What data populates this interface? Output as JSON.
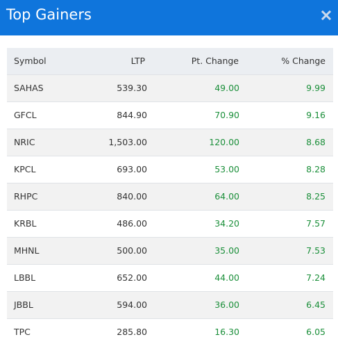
{
  "modal": {
    "title": "Top Gainers",
    "close_icon": "close-icon",
    "accent_color": "#0f75dc"
  },
  "table": {
    "columns": {
      "symbol": "Symbol",
      "ltp": "LTP",
      "pt_change": "Pt. Change",
      "pct_change": "% Change"
    },
    "rows": [
      {
        "symbol": "SAHAS",
        "ltp": "539.30",
        "pt_change": "49.00",
        "pct_change": "9.99"
      },
      {
        "symbol": "GFCL",
        "ltp": "844.90",
        "pt_change": "70.90",
        "pct_change": "9.16"
      },
      {
        "symbol": "NRIC",
        "ltp": "1,503.00",
        "pt_change": "120.00",
        "pct_change": "8.68"
      },
      {
        "symbol": "KPCL",
        "ltp": "693.00",
        "pt_change": "53.00",
        "pct_change": "8.28"
      },
      {
        "symbol": "RHPC",
        "ltp": "840.00",
        "pt_change": "64.00",
        "pct_change": "8.25"
      },
      {
        "symbol": "KRBL",
        "ltp": "486.00",
        "pt_change": "34.20",
        "pct_change": "7.57"
      },
      {
        "symbol": "MHNL",
        "ltp": "500.00",
        "pt_change": "35.00",
        "pct_change": "7.53"
      },
      {
        "symbol": "LBBL",
        "ltp": "652.00",
        "pt_change": "44.00",
        "pct_change": "7.24"
      },
      {
        "symbol": "JBBL",
        "ltp": "594.00",
        "pt_change": "36.00",
        "pct_change": "6.45"
      },
      {
        "symbol": "TPC",
        "ltp": "285.80",
        "pt_change": "16.30",
        "pct_change": "6.05"
      }
    ],
    "gain_color": "#1b8f3a"
  }
}
